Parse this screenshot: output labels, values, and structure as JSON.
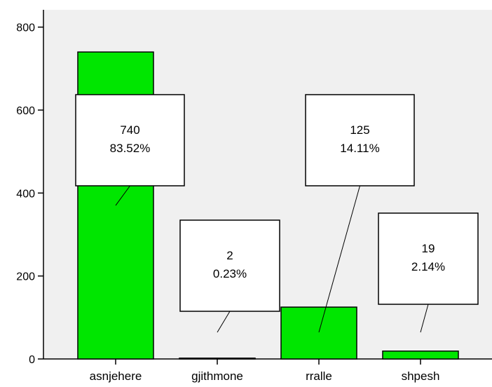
{
  "chart_data": {
    "type": "bar",
    "categories": [
      "asnjehere",
      "gjithmone",
      "rralle",
      "shpesh"
    ],
    "values": [
      740,
      2,
      125,
      19
    ],
    "percentages": [
      "83.52%",
      "0.23%",
      "14.11%",
      "2.14%"
    ],
    "count_labels": [
      "740",
      "2",
      "125",
      "19"
    ],
    "yticks": [
      "0",
      "200",
      "400",
      "600",
      "800"
    ],
    "ylim": [
      0,
      840
    ],
    "title": "",
    "xlabel": "",
    "ylabel": "",
    "grid": false,
    "bar_color": "#00e600",
    "plot_background": "#f0f0f0"
  }
}
